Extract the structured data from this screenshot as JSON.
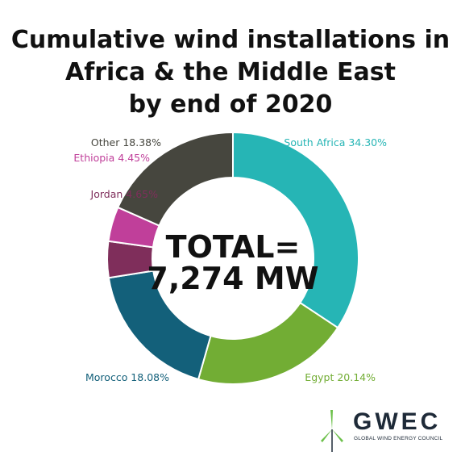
{
  "chart_data": {
    "type": "pie",
    "variant": "donut",
    "title_lines": [
      "Cumulative wind installations in",
      "Africa & the Middle East",
      "by end of 2020"
    ],
    "center_lines": [
      "TOTAL=",
      "7,274 MW"
    ],
    "slices": [
      {
        "name": "South Africa",
        "value": 34.3,
        "label": "South Africa 34.30%",
        "color": "#26b5b5",
        "label_color": "#26b5b5"
      },
      {
        "name": "Egypt",
        "value": 20.14,
        "label": "Egypt 20.14%",
        "color": "#72ad34",
        "label_color": "#72ad34"
      },
      {
        "name": "Morocco",
        "value": 18.08,
        "label": "Morocco 18.08%",
        "color": "#13607a",
        "label_color": "#13607a"
      },
      {
        "name": "Jordan",
        "value": 4.65,
        "label": "Jordan 4.65%",
        "color": "#7f2e5b",
        "label_color": "#7f2e5b"
      },
      {
        "name": "Ethiopia",
        "value": 4.45,
        "label": "Ethiopia 4.45%",
        "color": "#c03f9a",
        "label_color": "#c03f9a"
      },
      {
        "name": "Other",
        "value": 18.38,
        "label": "Other 18.38%",
        "color": "#46463e",
        "label_color": "#46463e"
      }
    ]
  },
  "logo": {
    "name": "GWEC",
    "subtitle": "GLOBAL WIND ENERGY COUNCIL",
    "accent_color": "#6cc04a"
  }
}
